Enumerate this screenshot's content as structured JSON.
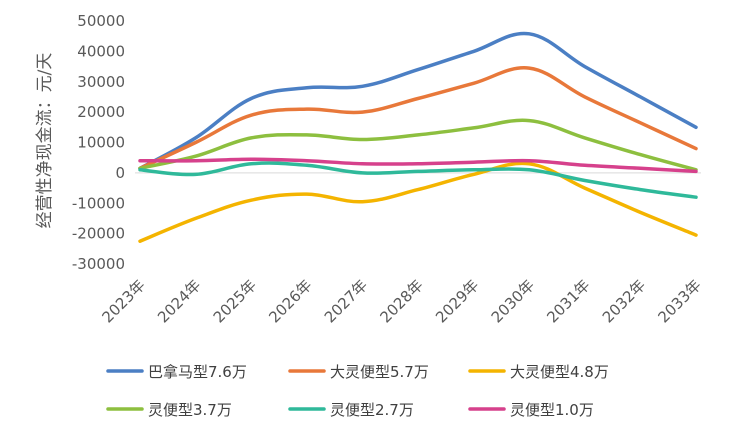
{
  "chart_data": {
    "type": "line",
    "smooth": true,
    "ylabel": "经营性净现金流：元/天",
    "ylim": [
      -30000,
      50000
    ],
    "yticks": [
      50000,
      40000,
      30000,
      20000,
      10000,
      0,
      -10000,
      -20000,
      -30000
    ],
    "categories": [
      "2023年",
      "2024年",
      "2025年",
      "2026年",
      "2027年",
      "2028年",
      "2029年",
      "2030年",
      "2031年",
      "2032年",
      "2033年"
    ],
    "grid": false,
    "legend_position": "bottom",
    "series": [
      {
        "name": "巴拿马型7.6万",
        "color": "#4B7FC4",
        "values": [
          1500,
          11500,
          24500,
          28000,
          28500,
          34000,
          40000,
          45800,
          35000,
          25000,
          15000
        ]
      },
      {
        "name": "大灵便型5.7万",
        "color": "#E8783A",
        "values": [
          1500,
          10000,
          19000,
          21000,
          20000,
          24500,
          29500,
          34500,
          25000,
          16500,
          8000
        ]
      },
      {
        "name": "大灵便型4.8万",
        "color": "#F4B400",
        "values": [
          -22500,
          -15000,
          -9000,
          -7000,
          -9500,
          -5500,
          -500,
          3000,
          -5000,
          -13000,
          -20500
        ]
      },
      {
        "name": "灵便型3.7万",
        "color": "#8DBF3F",
        "values": [
          1500,
          5500,
          11500,
          12500,
          11000,
          12500,
          14800,
          17200,
          11500,
          6000,
          1000
        ]
      },
      {
        "name": "灵便型2.7万",
        "color": "#2FB99A",
        "values": [
          1000,
          -500,
          3000,
          2500,
          0,
          500,
          1000,
          1000,
          -2500,
          -5500,
          -8000
        ]
      },
      {
        "name": "灵便型1.0万",
        "color": "#D6418C",
        "values": [
          4000,
          4000,
          4500,
          4000,
          3000,
          3000,
          3500,
          4000,
          2500,
          1500,
          500
        ]
      }
    ]
  }
}
